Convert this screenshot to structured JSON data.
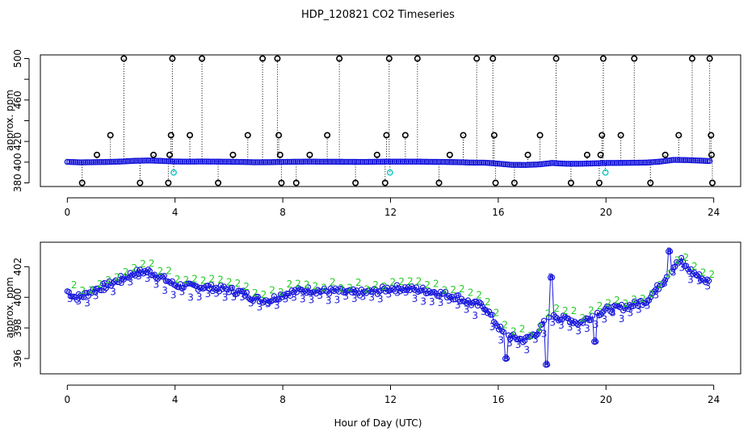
{
  "title": "HDP_120821  CO2 Timeseries",
  "xlabel": "Hour of Day (UTC)",
  "chart_data": [
    {
      "type": "scatter",
      "ylabel": "approx. ppm",
      "xlim": [
        0,
        24
      ],
      "ylim": [
        378,
        502
      ],
      "xticks": [
        0,
        4,
        8,
        12,
        16,
        20,
        24
      ],
      "yticks": [
        380,
        420,
        460,
        500
      ],
      "ytick_labels": [
        "380",
        "420",
        "460",
        "500"
      ],
      "extra_ytick_labels": [
        "400"
      ],
      "colors": {
        "main": "#1a1adc",
        "secondary": "#22cccc",
        "marker": "#000000"
      },
      "baseline": [
        [
          0.0,
          400.3
        ],
        [
          0.5,
          399.8
        ],
        [
          1.0,
          400.0
        ],
        [
          1.5,
          400.2
        ],
        [
          2.0,
          400.6
        ],
        [
          2.5,
          401.3
        ],
        [
          3.0,
          401.6
        ],
        [
          3.5,
          401.2
        ],
        [
          4.0,
          400.6
        ],
        [
          4.5,
          400.5
        ],
        [
          5.0,
          400.6
        ],
        [
          5.5,
          400.5
        ],
        [
          6.0,
          400.4
        ],
        [
          6.5,
          400.2
        ],
        [
          7.0,
          399.9
        ],
        [
          7.5,
          400.0
        ],
        [
          8.0,
          400.2
        ],
        [
          8.5,
          400.4
        ],
        [
          9.0,
          400.5
        ],
        [
          9.5,
          400.4
        ],
        [
          10.0,
          400.4
        ],
        [
          10.5,
          400.3
        ],
        [
          11.0,
          400.2
        ],
        [
          11.5,
          400.4
        ],
        [
          12.0,
          400.5
        ],
        [
          12.5,
          400.5
        ],
        [
          13.0,
          400.5
        ],
        [
          13.5,
          400.3
        ],
        [
          14.0,
          400.2
        ],
        [
          14.5,
          400.0
        ],
        [
          15.0,
          399.6
        ],
        [
          15.5,
          399.5
        ],
        [
          16.0,
          398.6
        ],
        [
          16.5,
          397.4
        ],
        [
          17.0,
          397.3
        ],
        [
          17.5,
          397.8
        ],
        [
          18.0,
          399.2
        ],
        [
          18.5,
          398.5
        ],
        [
          19.0,
          398.4
        ],
        [
          19.5,
          398.8
        ],
        [
          20.0,
          399.2
        ],
        [
          20.5,
          399.3
        ],
        [
          21.0,
          399.4
        ],
        [
          21.5,
          399.6
        ],
        [
          22.0,
          400.5
        ],
        [
          22.5,
          402.2
        ],
        [
          23.0,
          402.0
        ],
        [
          23.5,
          401.5
        ],
        [
          23.8,
          401.1
        ]
      ],
      "spikes": [
        [
          2.1,
          500
        ],
        [
          3.9,
          500
        ],
        [
          5.0,
          500
        ],
        [
          7.25,
          500
        ],
        [
          7.8,
          500
        ],
        [
          10.1,
          500
        ],
        [
          11.95,
          500
        ],
        [
          13.0,
          500
        ],
        [
          15.2,
          500
        ],
        [
          15.8,
          500
        ],
        [
          18.15,
          500
        ],
        [
          19.9,
          500
        ],
        [
          21.05,
          500
        ],
        [
          23.2,
          500
        ],
        [
          23.85,
          500
        ],
        [
          1.6,
          426
        ],
        [
          3.85,
          426
        ],
        [
          4.55,
          426
        ],
        [
          6.7,
          426
        ],
        [
          7.85,
          426
        ],
        [
          9.65,
          426
        ],
        [
          11.85,
          426
        ],
        [
          12.55,
          426
        ],
        [
          14.7,
          426
        ],
        [
          15.85,
          426
        ],
        [
          17.55,
          426
        ],
        [
          19.85,
          426
        ],
        [
          20.55,
          426
        ],
        [
          22.7,
          426
        ],
        [
          23.9,
          426
        ],
        [
          1.1,
          407
        ],
        [
          3.2,
          407
        ],
        [
          3.8,
          407
        ],
        [
          6.15,
          407
        ],
        [
          7.9,
          407
        ],
        [
          9.0,
          407
        ],
        [
          11.5,
          407
        ],
        [
          14.2,
          407
        ],
        [
          17.1,
          407
        ],
        [
          19.3,
          407
        ],
        [
          19.8,
          407
        ],
        [
          22.2,
          407
        ],
        [
          23.92,
          407
        ],
        [
          0.55,
          380
        ],
        [
          2.7,
          380
        ],
        [
          3.75,
          380
        ],
        [
          5.6,
          380
        ],
        [
          7.95,
          380
        ],
        [
          8.5,
          380
        ],
        [
          10.7,
          380
        ],
        [
          11.8,
          380
        ],
        [
          13.8,
          380
        ],
        [
          15.9,
          380
        ],
        [
          16.6,
          380
        ],
        [
          18.7,
          380
        ],
        [
          19.75,
          380
        ],
        [
          21.65,
          380
        ],
        [
          23.95,
          380
        ]
      ],
      "cyan_markers": [
        [
          3.95,
          390
        ],
        [
          11.98,
          390
        ],
        [
          19.98,
          390
        ]
      ]
    },
    {
      "type": "scatter",
      "ylabel": "approx. ppm",
      "xlim": [
        -1.0,
        25.0
      ],
      "ylim": [
        395.0,
        403.6
      ],
      "xticks": [
        0,
        4,
        8,
        12,
        16,
        20,
        24
      ],
      "yticks": [
        396,
        398,
        400,
        402
      ],
      "colors": {
        "series3": "#1a1adc",
        "series2": "#22cc22",
        "circles": "#1a1adc"
      },
      "series_symbols": [
        "3",
        "2"
      ],
      "baseline": [
        [
          0.0,
          400.4
        ],
        [
          0.3,
          400.0
        ],
        [
          0.6,
          400.1
        ],
        [
          1.0,
          400.5
        ],
        [
          1.5,
          400.8
        ],
        [
          2.0,
          401.2
        ],
        [
          2.5,
          401.6
        ],
        [
          3.0,
          401.7
        ],
        [
          3.5,
          401.3
        ],
        [
          4.0,
          400.8
        ],
        [
          4.5,
          400.7
        ],
        [
          5.0,
          400.7
        ],
        [
          5.5,
          400.6
        ],
        [
          6.0,
          400.5
        ],
        [
          6.5,
          400.3
        ],
        [
          7.0,
          399.9
        ],
        [
          7.5,
          399.8
        ],
        [
          8.0,
          400.2
        ],
        [
          8.5,
          400.4
        ],
        [
          9.0,
          400.5
        ],
        [
          9.5,
          400.4
        ],
        [
          10.0,
          400.4
        ],
        [
          10.5,
          400.3
        ],
        [
          11.0,
          400.3
        ],
        [
          11.5,
          400.4
        ],
        [
          12.0,
          400.6
        ],
        [
          12.5,
          400.6
        ],
        [
          13.0,
          400.5
        ],
        [
          13.5,
          400.4
        ],
        [
          14.0,
          400.2
        ],
        [
          14.5,
          400.0
        ],
        [
          15.0,
          399.6
        ],
        [
          15.5,
          399.4
        ],
        [
          15.8,
          398.6
        ],
        [
          16.2,
          397.6
        ],
        [
          16.5,
          397.4
        ],
        [
          17.0,
          397.2
        ],
        [
          17.5,
          397.8
        ],
        [
          18.0,
          399.0
        ],
        [
          18.3,
          398.6
        ],
        [
          18.6,
          398.6
        ],
        [
          19.0,
          398.3
        ],
        [
          19.5,
          398.8
        ],
        [
          20.0,
          399.2
        ],
        [
          20.5,
          399.3
        ],
        [
          21.0,
          399.5
        ],
        [
          21.5,
          399.8
        ],
        [
          22.0,
          400.8
        ],
        [
          22.5,
          402.0
        ],
        [
          22.8,
          402.4
        ],
        [
          23.0,
          401.9
        ],
        [
          23.5,
          401.3
        ],
        [
          23.8,
          401.0
        ]
      ],
      "dips": [
        [
          16.3,
          396.0
        ],
        [
          17.8,
          395.6
        ],
        [
          19.6,
          397.1
        ]
      ],
      "peaks": [
        [
          17.95,
          401.3
        ],
        [
          22.35,
          403.0
        ]
      ]
    }
  ]
}
